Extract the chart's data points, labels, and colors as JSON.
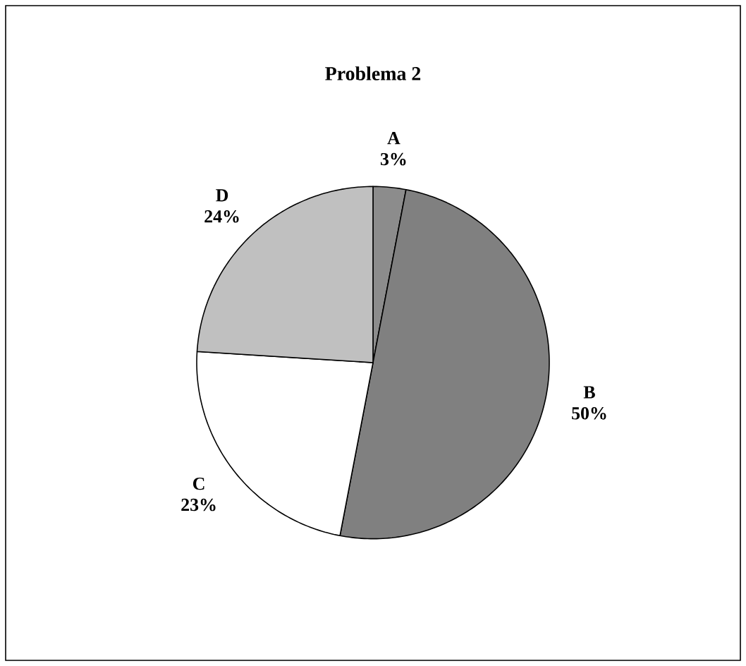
{
  "chart_data": {
    "type": "pie",
    "title": "Problema 2",
    "categories": [
      "A",
      "B",
      "C",
      "D"
    ],
    "values": [
      3,
      50,
      23,
      24
    ],
    "value_labels": [
      "3%",
      "50%",
      "23%",
      "24%"
    ],
    "colors": [
      "#8c8c8c",
      "#808080",
      "#ffffff",
      "#c0c0c0"
    ]
  }
}
